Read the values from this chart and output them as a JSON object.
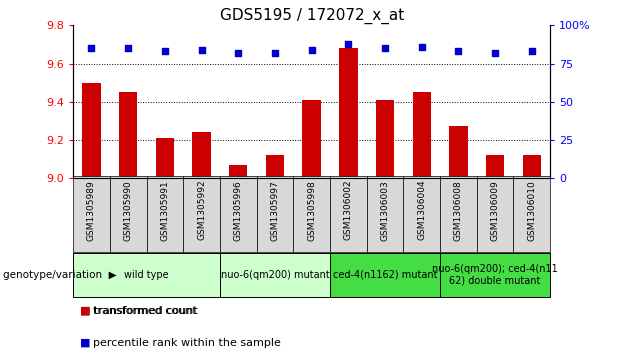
{
  "title": "GDS5195 / 172072_x_at",
  "samples": [
    "GSM1305989",
    "GSM1305990",
    "GSM1305991",
    "GSM1305992",
    "GSM1305996",
    "GSM1305997",
    "GSM1305998",
    "GSM1306002",
    "GSM1306003",
    "GSM1306004",
    "GSM1306008",
    "GSM1306009",
    "GSM1306010"
  ],
  "bar_values": [
    9.5,
    9.45,
    9.21,
    9.24,
    9.07,
    9.12,
    9.41,
    9.68,
    9.41,
    9.45,
    9.27,
    9.12,
    9.12
  ],
  "percentile_values": [
    85,
    85,
    83,
    84,
    82,
    82,
    84,
    88,
    85,
    86,
    83,
    82,
    83
  ],
  "bar_color": "#cc0000",
  "percentile_color": "#0000cc",
  "ylim": [
    9.0,
    9.8
  ],
  "yticks": [
    9.0,
    9.2,
    9.4,
    9.6,
    9.8
  ],
  "y2lim": [
    0,
    100
  ],
  "y2ticks": [
    0,
    25,
    50,
    75,
    100
  ],
  "y2ticklabels": [
    "0",
    "25",
    "50",
    "75",
    "100%"
  ],
  "grid_values": [
    9.2,
    9.4,
    9.6
  ],
  "groups": [
    {
      "label": "wild type",
      "indices": [
        0,
        1,
        2,
        3
      ],
      "color": "#ccffcc"
    },
    {
      "label": "nuo-6(qm200) mutant",
      "indices": [
        4,
        5,
        6
      ],
      "color": "#ccffcc"
    },
    {
      "label": "ced-4(n1162) mutant",
      "indices": [
        7,
        8,
        9
      ],
      "color": "#44dd44"
    },
    {
      "label": "nuo-6(qm200); ced-4(n11\n62) double mutant",
      "indices": [
        10,
        11,
        12
      ],
      "color": "#44dd44"
    }
  ],
  "group_label": "genotype/variation",
  "legend_bar_label": "transformed count",
  "legend_perc_label": "percentile rank within the sample",
  "sample_bg_color": "#d8d8d8",
  "fig_bg_color": "#ffffff"
}
